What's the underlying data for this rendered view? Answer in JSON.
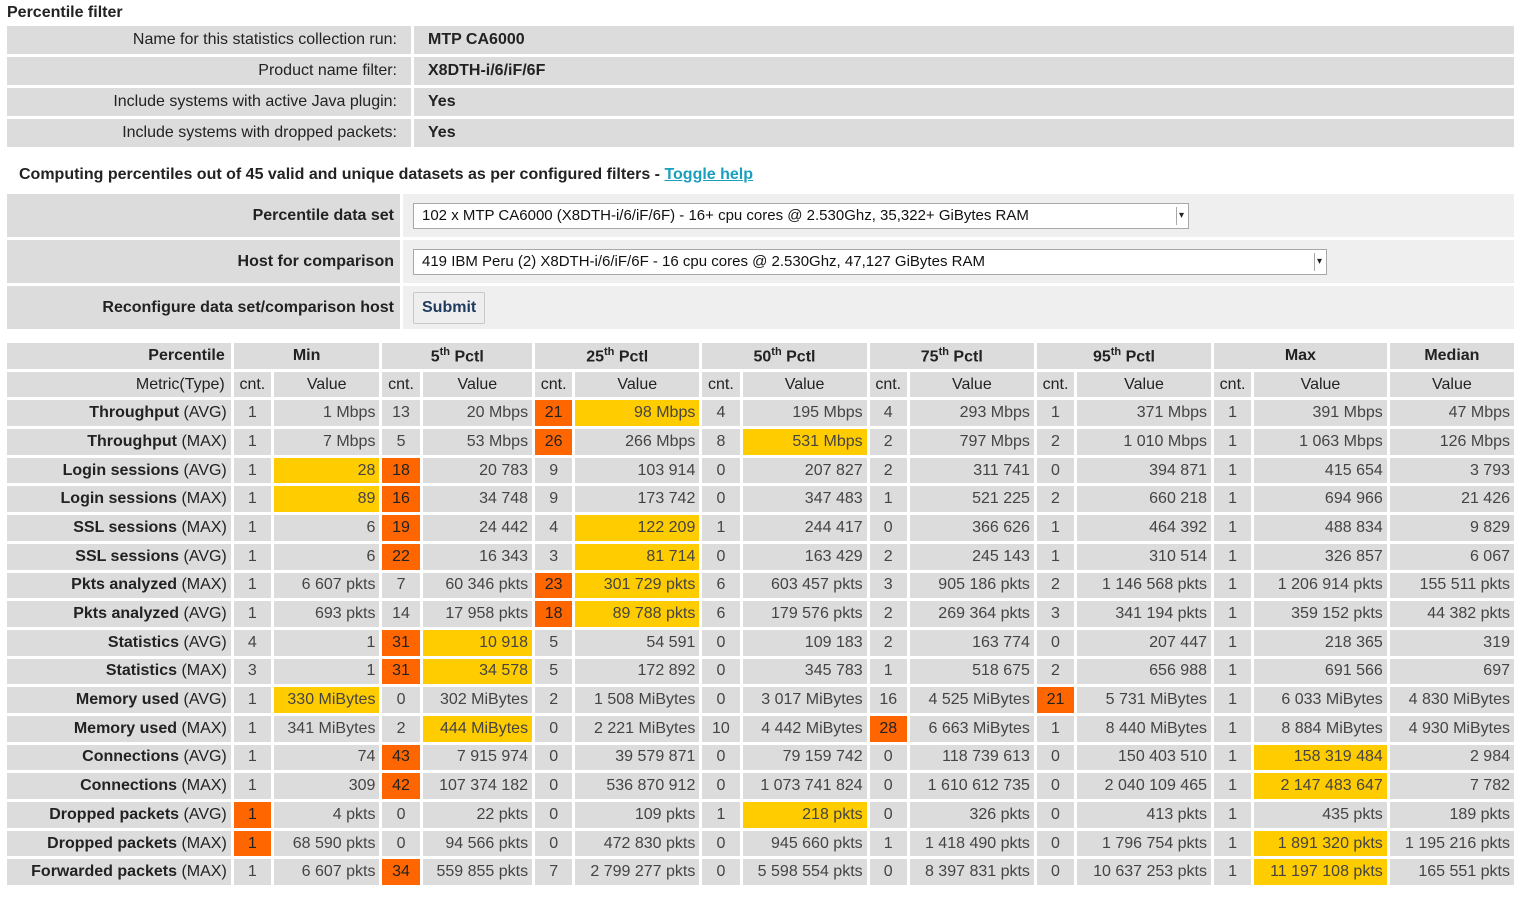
{
  "colors": {
    "label_bg": "#dcdcdc",
    "orange_highlight": "#ff6600",
    "yellow_highlight": "#ffcc00",
    "link": "#1a9fbf"
  },
  "filter": {
    "title": "Percentile filter",
    "rows": [
      {
        "label": "Name for this statistics collection run:",
        "value": "MTP CA6000"
      },
      {
        "label": "Product name filter:",
        "value": "X8DTH-i/6/iF/6F"
      },
      {
        "label": "Include systems with active Java plugin:",
        "value": "Yes"
      },
      {
        "label": "Include systems with dropped packets:",
        "value": "Yes"
      }
    ]
  },
  "computing": {
    "text": "Computing percentiles out of 45 valid and unique datasets as per configured filters - ",
    "toggle_link": "Toggle help"
  },
  "config": {
    "dataset_label": "Percentile data set",
    "dataset_value": "102 x MTP CA6000 (X8DTH-i/6/iF/6F) - 16+ cpu cores @ 2.530Ghz, 35,322+ GiBytes RAM",
    "host_label": "Host for comparison",
    "host_value": "419 IBM Peru (2) X8DTH-i/6/iF/6F - 16 cpu cores @ 2.530Ghz, 47,127 GiBytes RAM",
    "reconfigure_label": "Reconfigure data set/comparison host",
    "submit_label": "Submit"
  },
  "stats": {
    "percentile_header": "Percentile",
    "metric_header": "Metric(Type)",
    "cnt_header": "cnt.",
    "value_header": "Value",
    "columns": [
      {
        "label": "Min",
        "sup": ""
      },
      {
        "label": "5",
        "sup": "th",
        "suffix": " Pctl"
      },
      {
        "label": "25",
        "sup": "th",
        "suffix": " Pctl"
      },
      {
        "label": "50",
        "sup": "th",
        "suffix": " Pctl"
      },
      {
        "label": "75",
        "sup": "th",
        "suffix": " Pctl"
      },
      {
        "label": "95",
        "sup": "th",
        "suffix": " Pctl"
      },
      {
        "label": "Max",
        "sup": ""
      },
      {
        "label": "Median",
        "sup": ""
      }
    ],
    "rows": [
      {
        "metric": "Throughput",
        "type": "(AVG)",
        "cells": [
          {
            "cnt": "1",
            "value": "1 Mbps"
          },
          {
            "cnt": "13",
            "value": "20 Mbps"
          },
          {
            "cnt": "21",
            "value": "98 Mbps",
            "cnt_hl": "orange",
            "val_hl": "yellow"
          },
          {
            "cnt": "4",
            "value": "195 Mbps"
          },
          {
            "cnt": "4",
            "value": "293 Mbps"
          },
          {
            "cnt": "1",
            "value": "371 Mbps"
          },
          {
            "cnt": "1",
            "value": "391 Mbps"
          }
        ],
        "median": "47 Mbps"
      },
      {
        "metric": "Throughput",
        "type": "(MAX)",
        "cells": [
          {
            "cnt": "1",
            "value": "7 Mbps"
          },
          {
            "cnt": "5",
            "value": "53 Mbps"
          },
          {
            "cnt": "26",
            "value": "266 Mbps",
            "cnt_hl": "orange"
          },
          {
            "cnt": "8",
            "value": "531 Mbps",
            "val_hl": "yellow"
          },
          {
            "cnt": "2",
            "value": "797 Mbps"
          },
          {
            "cnt": "2",
            "value": "1 010 Mbps"
          },
          {
            "cnt": "1",
            "value": "1 063 Mbps"
          }
        ],
        "median": "126 Mbps"
      },
      {
        "metric": "Login sessions",
        "type": "(AVG)",
        "cells": [
          {
            "cnt": "1",
            "value": "28",
            "val_hl": "yellow"
          },
          {
            "cnt": "18",
            "value": "20 783",
            "cnt_hl": "orange"
          },
          {
            "cnt": "9",
            "value": "103 914"
          },
          {
            "cnt": "0",
            "value": "207 827"
          },
          {
            "cnt": "2",
            "value": "311 741"
          },
          {
            "cnt": "0",
            "value": "394 871"
          },
          {
            "cnt": "1",
            "value": "415 654"
          }
        ],
        "median": "3 793"
      },
      {
        "metric": "Login sessions",
        "type": "(MAX)",
        "cells": [
          {
            "cnt": "1",
            "value": "89",
            "val_hl": "yellow"
          },
          {
            "cnt": "16",
            "value": "34 748",
            "cnt_hl": "orange"
          },
          {
            "cnt": "9",
            "value": "173 742"
          },
          {
            "cnt": "0",
            "value": "347 483"
          },
          {
            "cnt": "1",
            "value": "521 225"
          },
          {
            "cnt": "2",
            "value": "660 218"
          },
          {
            "cnt": "1",
            "value": "694 966"
          }
        ],
        "median": "21 426"
      },
      {
        "metric": "SSL sessions",
        "type": "(MAX)",
        "cells": [
          {
            "cnt": "1",
            "value": "6"
          },
          {
            "cnt": "19",
            "value": "24 442",
            "cnt_hl": "orange"
          },
          {
            "cnt": "4",
            "value": "122 209",
            "val_hl": "yellow"
          },
          {
            "cnt": "1",
            "value": "244 417"
          },
          {
            "cnt": "0",
            "value": "366 626"
          },
          {
            "cnt": "1",
            "value": "464 392"
          },
          {
            "cnt": "1",
            "value": "488 834"
          }
        ],
        "median": "9 829"
      },
      {
        "metric": "SSL sessions",
        "type": "(AVG)",
        "cells": [
          {
            "cnt": "1",
            "value": "6"
          },
          {
            "cnt": "22",
            "value": "16 343",
            "cnt_hl": "orange"
          },
          {
            "cnt": "3",
            "value": "81 714",
            "val_hl": "yellow"
          },
          {
            "cnt": "0",
            "value": "163 429"
          },
          {
            "cnt": "2",
            "value": "245 143"
          },
          {
            "cnt": "1",
            "value": "310 514"
          },
          {
            "cnt": "1",
            "value": "326 857"
          }
        ],
        "median": "6 067"
      },
      {
        "metric": "Pkts analyzed",
        "type": "(MAX)",
        "cells": [
          {
            "cnt": "1",
            "value": "6 607 pkts"
          },
          {
            "cnt": "7",
            "value": "60 346 pkts"
          },
          {
            "cnt": "23",
            "value": "301 729 pkts",
            "cnt_hl": "orange",
            "val_hl": "yellow"
          },
          {
            "cnt": "6",
            "value": "603 457 pkts"
          },
          {
            "cnt": "3",
            "value": "905 186 pkts"
          },
          {
            "cnt": "2",
            "value": "1 146 568 pkts"
          },
          {
            "cnt": "1",
            "value": "1 206 914 pkts"
          }
        ],
        "median": "155 511 pkts"
      },
      {
        "metric": "Pkts analyzed",
        "type": "(AVG)",
        "cells": [
          {
            "cnt": "1",
            "value": "693 pkts"
          },
          {
            "cnt": "14",
            "value": "17 958 pkts"
          },
          {
            "cnt": "18",
            "value": "89 788 pkts",
            "cnt_hl": "orange",
            "val_hl": "yellow"
          },
          {
            "cnt": "6",
            "value": "179 576 pkts"
          },
          {
            "cnt": "2",
            "value": "269 364 pkts"
          },
          {
            "cnt": "3",
            "value": "341 194 pkts"
          },
          {
            "cnt": "1",
            "value": "359 152 pkts"
          }
        ],
        "median": "44 382 pkts"
      },
      {
        "metric": "Statistics",
        "type": "(AVG)",
        "cells": [
          {
            "cnt": "4",
            "value": "1"
          },
          {
            "cnt": "31",
            "value": "10 918",
            "cnt_hl": "orange",
            "val_hl": "yellow"
          },
          {
            "cnt": "5",
            "value": "54 591"
          },
          {
            "cnt": "0",
            "value": "109 183"
          },
          {
            "cnt": "2",
            "value": "163 774"
          },
          {
            "cnt": "0",
            "value": "207 447"
          },
          {
            "cnt": "1",
            "value": "218 365"
          }
        ],
        "median": "319"
      },
      {
        "metric": "Statistics",
        "type": "(MAX)",
        "cells": [
          {
            "cnt": "3",
            "value": "1"
          },
          {
            "cnt": "31",
            "value": "34 578",
            "cnt_hl": "orange",
            "val_hl": "yellow"
          },
          {
            "cnt": "5",
            "value": "172 892"
          },
          {
            "cnt": "0",
            "value": "345 783"
          },
          {
            "cnt": "1",
            "value": "518 675"
          },
          {
            "cnt": "2",
            "value": "656 988"
          },
          {
            "cnt": "1",
            "value": "691 566"
          }
        ],
        "median": "697"
      },
      {
        "metric": "Memory used",
        "type": "(AVG)",
        "cells": [
          {
            "cnt": "1",
            "value": "330 MiBytes",
            "val_hl": "yellow"
          },
          {
            "cnt": "0",
            "value": "302 MiBytes"
          },
          {
            "cnt": "2",
            "value": "1 508 MiBytes"
          },
          {
            "cnt": "0",
            "value": "3 017 MiBytes"
          },
          {
            "cnt": "16",
            "value": "4 525 MiBytes"
          },
          {
            "cnt": "21",
            "value": "5 731 MiBytes",
            "cnt_hl": "orange"
          },
          {
            "cnt": "1",
            "value": "6 033 MiBytes"
          }
        ],
        "median": "4 830 MiBytes"
      },
      {
        "metric": "Memory used",
        "type": "(MAX)",
        "cells": [
          {
            "cnt": "1",
            "value": "341 MiBytes"
          },
          {
            "cnt": "2",
            "value": "444 MiBytes",
            "val_hl": "yellow"
          },
          {
            "cnt": "0",
            "value": "2 221 MiBytes"
          },
          {
            "cnt": "10",
            "value": "4 442 MiBytes"
          },
          {
            "cnt": "28",
            "value": "6 663 MiBytes",
            "cnt_hl": "orange"
          },
          {
            "cnt": "1",
            "value": "8 440 MiBytes"
          },
          {
            "cnt": "1",
            "value": "8 884 MiBytes"
          }
        ],
        "median": "4 930 MiBytes"
      },
      {
        "metric": "Connections",
        "type": "(AVG)",
        "cells": [
          {
            "cnt": "1",
            "value": "74"
          },
          {
            "cnt": "43",
            "value": "7 915 974",
            "cnt_hl": "orange"
          },
          {
            "cnt": "0",
            "value": "39 579 871"
          },
          {
            "cnt": "0",
            "value": "79 159 742"
          },
          {
            "cnt": "0",
            "value": "118 739 613"
          },
          {
            "cnt": "0",
            "value": "150 403 510"
          },
          {
            "cnt": "1",
            "value": "158 319 484",
            "val_hl": "yellow"
          }
        ],
        "median": "2 984"
      },
      {
        "metric": "Connections",
        "type": "(MAX)",
        "cells": [
          {
            "cnt": "1",
            "value": "309"
          },
          {
            "cnt": "42",
            "value": "107 374 182",
            "cnt_hl": "orange"
          },
          {
            "cnt": "0",
            "value": "536 870 912"
          },
          {
            "cnt": "0",
            "value": "1 073 741 824"
          },
          {
            "cnt": "0",
            "value": "1 610 612 735"
          },
          {
            "cnt": "0",
            "value": "2 040 109 465"
          },
          {
            "cnt": "1",
            "value": "2 147 483 647",
            "val_hl": "yellow"
          }
        ],
        "median": "7 782"
      },
      {
        "metric": "Dropped packets",
        "type": "(AVG)",
        "cells": [
          {
            "cnt": "1",
            "value": "4 pkts",
            "cnt_hl": "orange"
          },
          {
            "cnt": "0",
            "value": "22 pkts"
          },
          {
            "cnt": "0",
            "value": "109 pkts"
          },
          {
            "cnt": "1",
            "value": "218 pkts",
            "val_hl": "yellow"
          },
          {
            "cnt": "0",
            "value": "326 pkts"
          },
          {
            "cnt": "0",
            "value": "413 pkts"
          },
          {
            "cnt": "1",
            "value": "435 pkts"
          }
        ],
        "median": "189 pkts"
      },
      {
        "metric": "Dropped packets",
        "type": "(MAX)",
        "cells": [
          {
            "cnt": "1",
            "value": "68 590 pkts",
            "cnt_hl": "orange"
          },
          {
            "cnt": "0",
            "value": "94 566 pkts"
          },
          {
            "cnt": "0",
            "value": "472 830 pkts"
          },
          {
            "cnt": "0",
            "value": "945 660 pkts"
          },
          {
            "cnt": "1",
            "value": "1 418 490 pkts"
          },
          {
            "cnt": "0",
            "value": "1 796 754 pkts"
          },
          {
            "cnt": "1",
            "value": "1 891 320 pkts",
            "val_hl": "yellow"
          }
        ],
        "median": "1 195 216 pkts"
      },
      {
        "metric": "Forwarded packets",
        "type": "(MAX)",
        "cells": [
          {
            "cnt": "1",
            "value": "6 607 pkts"
          },
          {
            "cnt": "34",
            "value": "559 855 pkts",
            "cnt_hl": "orange"
          },
          {
            "cnt": "7",
            "value": "2 799 277 pkts"
          },
          {
            "cnt": "0",
            "value": "5 598 554 pkts"
          },
          {
            "cnt": "0",
            "value": "8 397 831 pkts"
          },
          {
            "cnt": "0",
            "value": "10 637 253 pkts"
          },
          {
            "cnt": "1",
            "value": "11 197 108 pkts",
            "val_hl": "yellow"
          }
        ],
        "median": "165 551 pkts"
      }
    ]
  }
}
